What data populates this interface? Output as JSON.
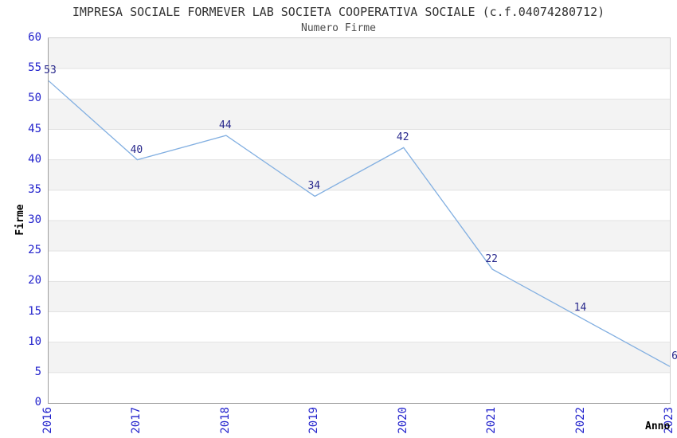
{
  "chart_data": {
    "type": "line",
    "title": "IMPRESA SOCIALE FORMEVER LAB SOCIETA COOPERATIVA SOCIALE (c.f.04074280712)",
    "subtitle": "Numero Firme",
    "xlabel": "Anno",
    "ylabel": "Firme",
    "categories": [
      "2016",
      "2017",
      "2018",
      "2019",
      "2020",
      "2021",
      "2022",
      "2023"
    ],
    "values": [
      53,
      40,
      44,
      34,
      42,
      22,
      14,
      6
    ],
    "ylim": [
      0,
      60
    ],
    "yticks": [
      0,
      5,
      10,
      15,
      20,
      25,
      30,
      35,
      40,
      45,
      50,
      55,
      60
    ],
    "grid": "horizontal alternating bands, no vertical gridlines",
    "legend": "none",
    "colors": {
      "line": "#82afe1",
      "tick_labels": "#2222cc",
      "point_labels": "#28288c",
      "band_gray": "#f3f3f3",
      "band_white": "#ffffff",
      "gridline": "#e2e2e2",
      "title_text": "#333333"
    }
  }
}
